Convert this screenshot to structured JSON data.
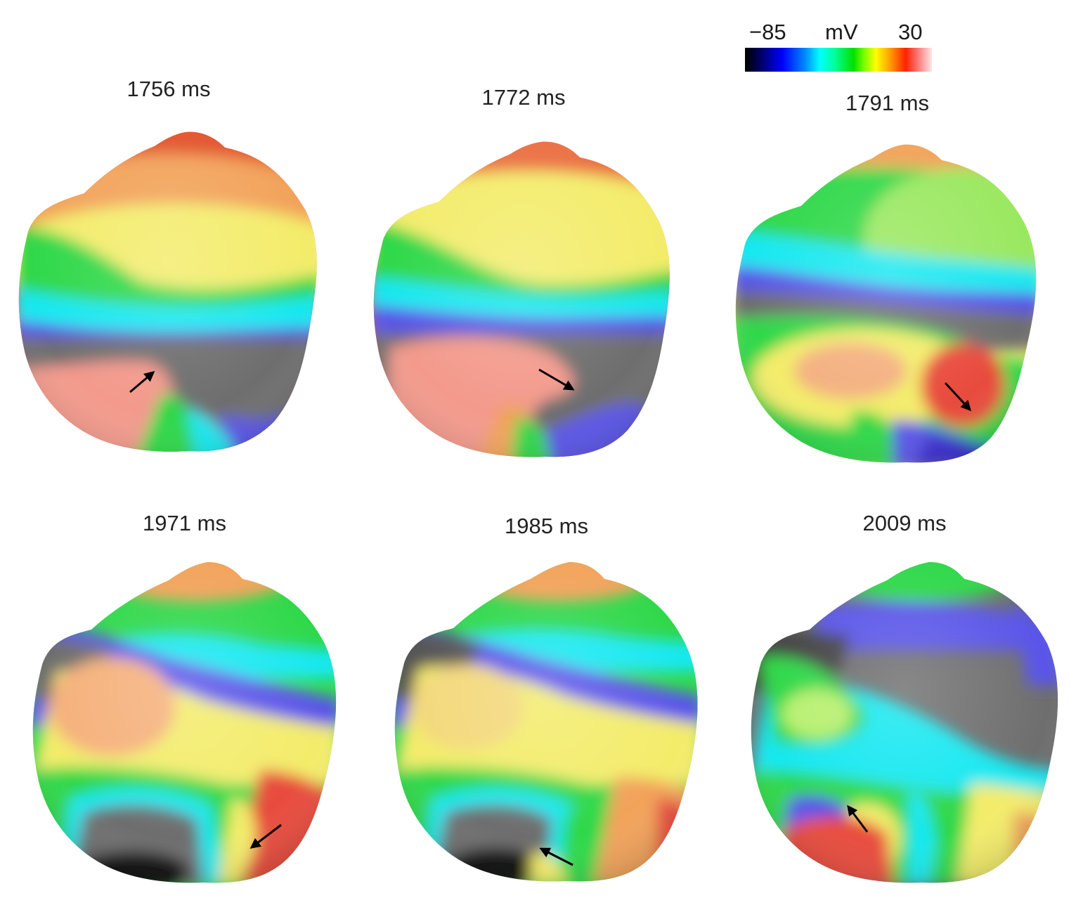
{
  "colorbar": {
    "min_label": "−85",
    "unit_label": "mV",
    "max_label": "30"
  },
  "panels": [
    {
      "time_label": "1756 ms"
    },
    {
      "time_label": "1772 ms"
    },
    {
      "time_label": "1791 ms"
    },
    {
      "time_label": "1971 ms"
    },
    {
      "time_label": "1985 ms"
    },
    {
      "time_label": "2009 ms"
    }
  ],
  "colors": {
    "rest_gray": "#6e6e6e",
    "deep_blue": "#3a2fd0",
    "cyan": "#18e8f0",
    "green": "#2fd84a",
    "yellow": "#f3ec6a",
    "orange": "#f2a35a",
    "red": "#e84b3e",
    "pink": "#f39a8c",
    "arrow": "#000000"
  }
}
